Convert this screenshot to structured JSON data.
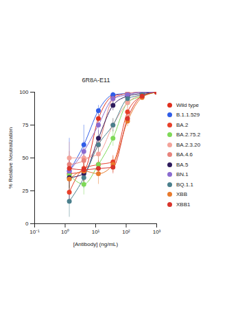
{
  "chart_data": {
    "type": "line",
    "title": "6R8A-E11",
    "x_label": "[Antibody] (ng/mL)",
    "y_label": "% Relative Neutralization",
    "log": "x",
    "marker": "circle",
    "legend": "right",
    "grid": false,
    "xlim": [
      0.1,
      1000
    ],
    "xticks": [
      {
        "value": 0.1,
        "label": "10⁻¹"
      },
      {
        "value": 1,
        "label": "10⁰"
      },
      {
        "value": 10,
        "label": "10¹"
      },
      {
        "value": 100,
        "label": "10²"
      },
      {
        "value": 1000,
        "label": "10³"
      }
    ],
    "ylim": [
      0,
      100
    ],
    "yticks": [
      0,
      25,
      50,
      75,
      100
    ],
    "x": [
      1.37,
      4.1,
      12.3,
      37,
      111,
      333,
      1000
    ],
    "series": [
      {
        "name": "Wild type",
        "color": "#e0301e",
        "values": [
          38,
          40,
          80,
          97,
          99,
          100,
          100
        ],
        "errors": [
          6,
          8,
          4,
          2,
          1,
          1,
          1
        ]
      },
      {
        "name": "B.1.1.529",
        "color": "#2f5de8",
        "values": [
          40,
          60,
          86,
          98,
          99,
          100,
          100
        ],
        "errors": [
          25,
          15,
          4,
          2,
          1,
          1,
          1
        ]
      },
      {
        "name": "BA.2",
        "color": "#e8402a",
        "values": [
          24,
          42,
          45,
          47,
          85,
          97,
          100
        ],
        "errors": [
          8,
          10,
          6,
          5,
          4,
          2,
          1
        ]
      },
      {
        "name": "BA.2.75.2",
        "color": "#7ed957",
        "values": [
          37,
          30,
          45,
          65,
          92,
          97,
          100
        ],
        "errors": [
          10,
          8,
          8,
          6,
          3,
          2,
          1
        ]
      },
      {
        "name": "BA.2.3.20",
        "color": "#f4a39a",
        "values": [
          50,
          50,
          53,
          75,
          92,
          98,
          100
        ],
        "errors": [
          12,
          10,
          8,
          5,
          3,
          2,
          1
        ]
      },
      {
        "name": "BA.4.6",
        "color": "#e8837c",
        "values": [
          45,
          48,
          60,
          95,
          99,
          100,
          100
        ],
        "errors": [
          10,
          8,
          6,
          3,
          1,
          1,
          1
        ]
      },
      {
        "name": "BA.5",
        "color": "#2d1a5c",
        "values": [
          35,
          38,
          65,
          90,
          97,
          99,
          100
        ],
        "errors": [
          8,
          6,
          6,
          4,
          2,
          1,
          1
        ]
      },
      {
        "name": "BN.1",
        "color": "#8a6bd0",
        "values": [
          40,
          55,
          75,
          95,
          98,
          100,
          100
        ],
        "errors": [
          10,
          8,
          6,
          3,
          2,
          1,
          1
        ]
      },
      {
        "name": "BQ.1.1",
        "color": "#4a7f8c",
        "values": [
          17,
          35,
          60,
          75,
          95,
          98,
          100
        ],
        "errors": [
          12,
          8,
          6,
          5,
          3,
          2,
          1
        ]
      },
      {
        "name": "XBB",
        "color": "#e87a2c",
        "values": [
          34,
          40,
          38,
          45,
          78,
          96,
          100
        ],
        "errors": [
          10,
          8,
          8,
          6,
          4,
          2,
          1
        ]
      },
      {
        "name": "XBB1",
        "color": "#d9342b",
        "values": [
          42,
          41,
          42,
          43,
          80,
          97,
          100
        ],
        "errors": [
          8,
          6,
          6,
          5,
          4,
          2,
          1
        ]
      }
    ]
  }
}
